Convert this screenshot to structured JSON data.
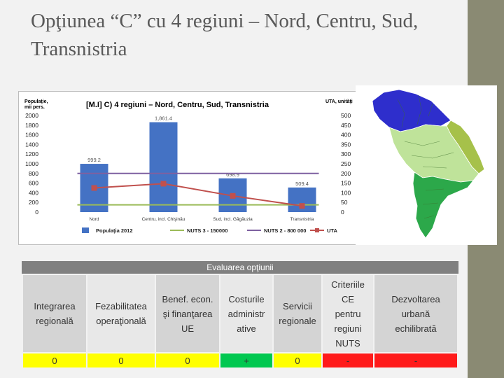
{
  "slide": {
    "title": "Opţiunea “C” cu 4 regiuni – Nord, Centru, Sud, Transnistria"
  },
  "chart_data": {
    "type": "bar",
    "title": "[M.I] C) 4 regiuni – Nord, Centru, Sud, Transnistria",
    "ylabel_left": "Populaţie, mii pers.",
    "ylabel_right": "UTA, unităţi",
    "categories": [
      "Nord",
      "Centru, incl. Chişinău",
      "Sud, incl. Găgăuzia",
      "Transnistria"
    ],
    "ylim_left": [
      0,
      2000
    ],
    "ylim_right": [
      0,
      500
    ],
    "left_ticks": [
      0,
      200,
      400,
      600,
      800,
      1000,
      1200,
      1400,
      1600,
      1800,
      2000
    ],
    "right_ticks": [
      0,
      50,
      100,
      150,
      200,
      250,
      300,
      350,
      400,
      450,
      500
    ],
    "series": [
      {
        "name": "Populaţia 2012",
        "kind": "bar",
        "axis": "left",
        "color": "#4472c4",
        "values": [
          999.2,
          1861.4,
          698.9,
          509.4
        ],
        "labels": [
          "999.2",
          "1,861.4",
          "698.9",
          "509.4"
        ]
      },
      {
        "name": "NUTS 3 - 150000",
        "kind": "line",
        "axis": "left",
        "color": "#9bbb59",
        "values": [
          150,
          150,
          150,
          150
        ]
      },
      {
        "name": "NUTS 2 - 800 000",
        "kind": "line",
        "axis": "left",
        "color": "#7e60a0",
        "values": [
          800,
          800,
          800,
          800
        ]
      },
      {
        "name": "UTA",
        "kind": "line",
        "axis": "right",
        "color": "#c0504d",
        "values": [
          125,
          147,
          84,
          32
        ]
      }
    ],
    "grid": false,
    "legend": "bottom"
  },
  "map": {
    "regions": [
      {
        "name": "Nord",
        "color": "#2e2ecc"
      },
      {
        "name": "Centru",
        "color": "#bfe39a"
      },
      {
        "name": "Sud",
        "color": "#2ca84a"
      },
      {
        "name": "Transnistria",
        "color": "#a6c14a"
      }
    ]
  },
  "evaluation": {
    "header": "Evaluarea opţiunii",
    "criteria": [
      {
        "lines": [
          "Integrarea",
          "regională"
        ],
        "value": "0",
        "status": "yellow"
      },
      {
        "lines": [
          "Fezabilitatea",
          "operaţională"
        ],
        "value": "0",
        "status": "yellow"
      },
      {
        "lines": [
          "Benef. econ.",
          "şi finanţarea",
          "UE"
        ],
        "value": "0",
        "status": "yellow"
      },
      {
        "lines": [
          "Costurile",
          "administr",
          "ative"
        ],
        "value": "+",
        "status": "green"
      },
      {
        "lines": [
          "Servicii",
          "regionale"
        ],
        "value": "0",
        "status": "yellow"
      },
      {
        "lines": [
          "Criteriile",
          "CE",
          "pentru",
          "regiuni",
          "NUTS"
        ],
        "value": "-",
        "status": "red"
      },
      {
        "lines": [
          "Dezvoltarea",
          "urbană",
          "echilibrată"
        ],
        "value": "-",
        "status": "red"
      }
    ]
  }
}
